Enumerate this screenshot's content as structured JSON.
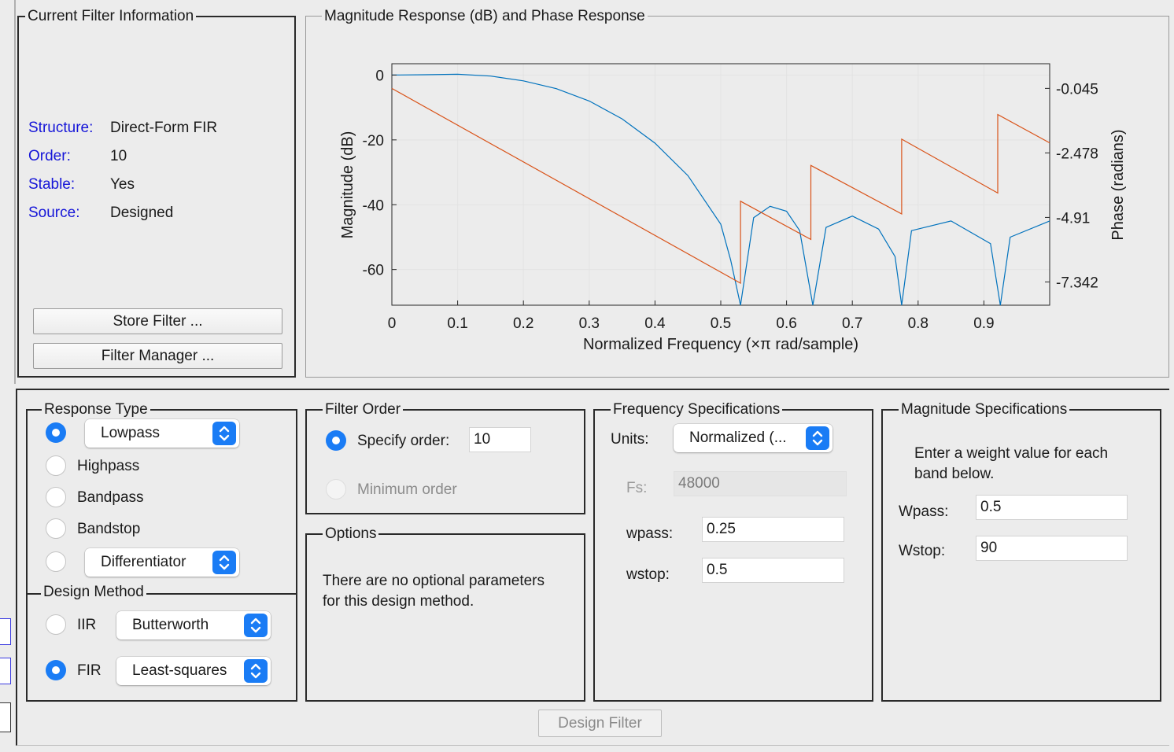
{
  "current_filter": {
    "title": "Current Filter Information",
    "rows": [
      {
        "key": "Structure:",
        "value": "Direct-Form FIR"
      },
      {
        "key": "Order:",
        "value": "10"
      },
      {
        "key": "Stable:",
        "value": "Yes"
      },
      {
        "key": "Source:",
        "value": "Designed"
      }
    ],
    "store_button": "Store Filter ...",
    "manager_button": "Filter Manager ..."
  },
  "plot_panel": {
    "title": "Magnitude Response (dB) and Phase Response"
  },
  "chart_data": {
    "type": "line",
    "xlabel": "Normalized Frequency (×π rad/sample)",
    "ylabel": "Magnitude (dB)",
    "y2label": "Phase (radians)",
    "xlim": [
      0,
      1
    ],
    "ylim": [
      -71,
      3.5
    ],
    "y2lim": [
      -8.22,
      0.885
    ],
    "x_ticks": [
      "0",
      "0.1",
      "0.2",
      "0.3",
      "0.4",
      "0.5",
      "0.6",
      "0.7",
      "0.8",
      "0.9"
    ],
    "y_ticks": [
      "0",
      "-20",
      "-40",
      "-60"
    ],
    "y2_ticks": [
      "-0.045",
      "-2.478",
      "-4.91",
      "-7.342"
    ],
    "grid": true,
    "colors": {
      "magnitude": "#0072bd",
      "phase": "#d95319"
    },
    "series": [
      {
        "axis": "left",
        "x": [
          0,
          0.05,
          0.1,
          0.15,
          0.2,
          0.25,
          0.3,
          0.35,
          0.4,
          0.45,
          0.5,
          0.515,
          0.53,
          0.55,
          0.575,
          0.6,
          0.62,
          0.64,
          0.66,
          0.7,
          0.74,
          0.765,
          0.775,
          0.79,
          0.85,
          0.91,
          0.925,
          0.94,
          1.0
        ],
        "values": [
          0,
          0.1,
          0.25,
          -0.3,
          -1.8,
          -4.2,
          -8,
          -13.5,
          -21,
          -31,
          -46,
          -57,
          -71,
          -44,
          -40.5,
          -42,
          -48,
          -71,
          -47,
          -43.5,
          -47.5,
          -56,
          -71,
          -48,
          -45,
          -52,
          -71,
          -50,
          -45
        ]
      },
      {
        "axis": "right",
        "x": [
          0,
          0.53,
          0.53,
          0.637,
          0.637,
          0.775,
          0.775,
          0.921,
          0.921,
          1.0
        ],
        "values": [
          -0.045,
          -7.39,
          -4.3,
          -5.74,
          -2.95,
          -4.78,
          -1.96,
          -3.99,
          -1.03,
          -2.1
        ]
      }
    ]
  },
  "response_type": {
    "title": "Response Type",
    "options": [
      "Lowpass",
      "Highpass",
      "Bandpass",
      "Bandstop",
      "Differentiator"
    ],
    "selected": "Lowpass"
  },
  "design_method": {
    "title": "Design Method",
    "iir_label": "IIR",
    "iir_select": "Butterworth",
    "fir_label": "FIR",
    "fir_select": "Least-squares",
    "selected": "FIR"
  },
  "filter_order": {
    "title": "Filter Order",
    "specify_label": "Specify order:",
    "order_value": "10",
    "minimum_label": "Minimum order"
  },
  "options": {
    "title": "Options",
    "text_line1": "There are no optional parameters",
    "text_line2": "for this design method."
  },
  "frequency_spec": {
    "title": "Frequency Specifications",
    "units_label": "Units:",
    "units_value": "Normalized (...",
    "fs_label": "Fs:",
    "fs_value": "48000",
    "wpass_label": "wpass:",
    "wpass_value": "0.25",
    "wstop_label": "wstop:",
    "wstop_value": "0.5"
  },
  "magnitude_spec": {
    "title": "Magnitude Specifications",
    "text_line1": "Enter a weight value for each",
    "text_line2": "band below.",
    "wpass_label": "Wpass:",
    "wpass_value": "0.5",
    "wstop_label": "Wstop:",
    "wstop_value": "90"
  },
  "design_button": "Design Filter"
}
